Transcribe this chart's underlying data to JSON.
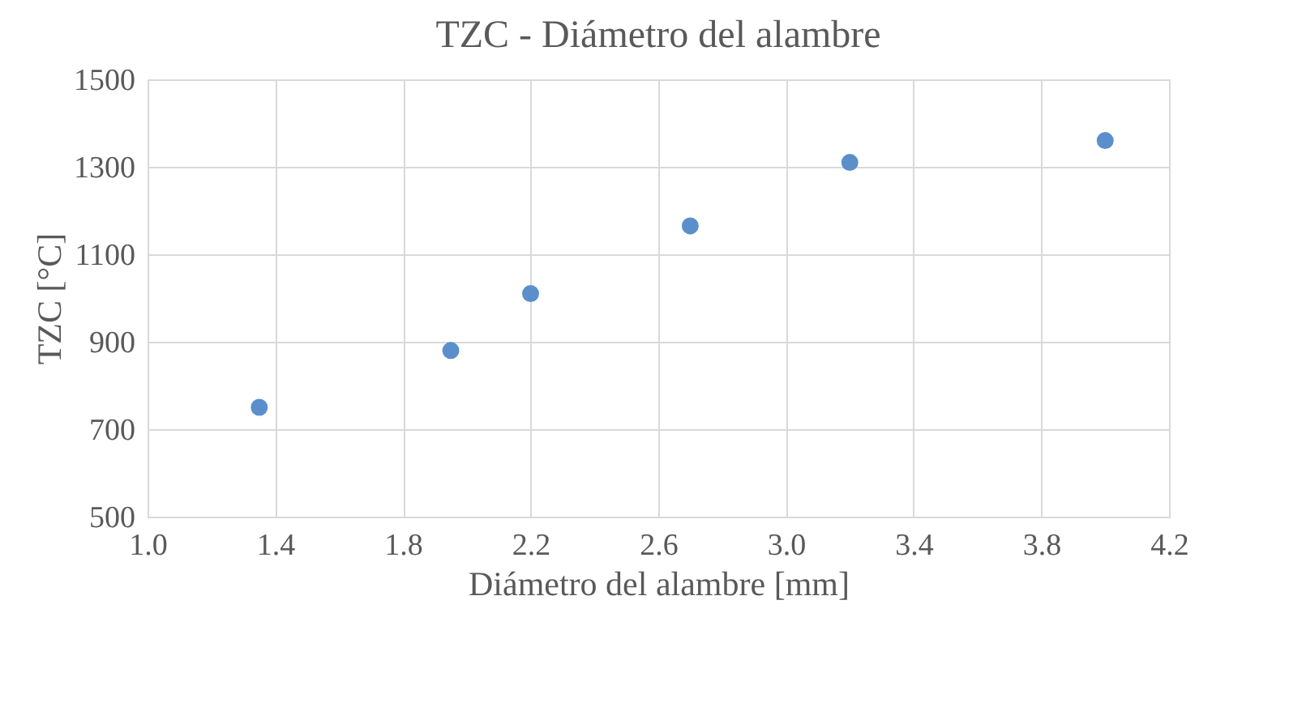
{
  "chart_data": {
    "type": "scatter",
    "title": "TZC - Diámetro del alambre",
    "xlabel": "Diámetro del alambre [mm]",
    "ylabel": "TZC [°C]",
    "x": [
      1.35,
      1.95,
      2.2,
      2.7,
      3.2,
      4.0
    ],
    "series": [
      {
        "color": "#5b8fcc",
        "values": [
          750,
          880,
          1010,
          1165,
          1310,
          1360
        ]
      }
    ],
    "xlim": [
      1.0,
      4.2
    ],
    "xticks": [
      {
        "value": 1.0,
        "label": "1.0"
      },
      1.4,
      1.8,
      2.2,
      2.6,
      {
        "value": 3.0,
        "label": "3.0"
      },
      3.4,
      3.8,
      4.2
    ],
    "ylim": [
      500,
      1500
    ],
    "yticks": [
      500,
      700,
      900,
      1100,
      1300,
      1500
    ],
    "grid": true,
    "marker": "circle",
    "legend": false
  }
}
